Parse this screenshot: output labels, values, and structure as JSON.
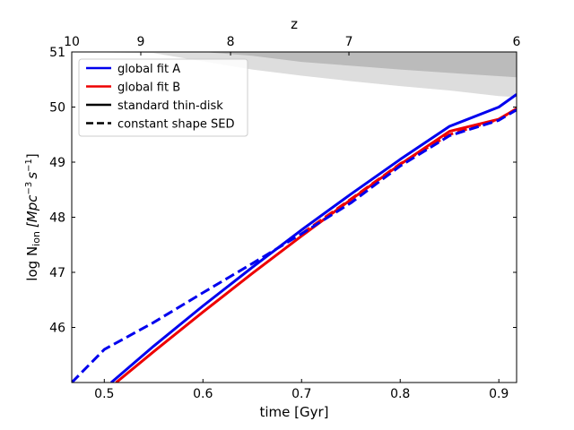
{
  "chart_data": {
    "type": "line",
    "xlabel": "time [Gyr]",
    "ylabel": "log Ṅ_ion [Mpc^-3 s^-1]",
    "ylabel_main": "log N",
    "ylabel_sub": "ion",
    "ylabel_units": "[Mpc",
    "ylabel_exp1": "−3",
    "ylabel_s": "s",
    "ylabel_exp2": "−1",
    "ylabel_close": "]",
    "top_axis_label": "z",
    "xlim": [
      0.467,
      0.918
    ],
    "ylim": [
      45,
      51
    ],
    "x_ticks": [
      0.5,
      0.6,
      0.7,
      0.8,
      0.9
    ],
    "x_tick_labels": [
      "0.5",
      "0.6",
      "0.7",
      "0.8",
      "0.9"
    ],
    "y_ticks": [
      46,
      47,
      48,
      49,
      50,
      51
    ],
    "y_tick_labels": [
      "46",
      "47",
      "48",
      "49",
      "50",
      "51"
    ],
    "top_ticks": [
      {
        "t": 0.467,
        "label": "10"
      },
      {
        "t": 0.537,
        "label": "9"
      },
      {
        "t": 0.628,
        "label": "8"
      },
      {
        "t": 0.748,
        "label": "7"
      },
      {
        "t": 0.918,
        "label": "6"
      }
    ],
    "series": [
      {
        "name": "global fit A, standard thin-disk",
        "color": "#0000ee",
        "dash": false,
        "x": [
          0.507,
          0.55,
          0.6,
          0.65,
          0.7,
          0.75,
          0.8,
          0.85,
          0.9,
          0.918
        ],
        "y": [
          45.0,
          45.66,
          46.39,
          47.09,
          47.77,
          48.42,
          49.05,
          49.65,
          50.0,
          50.23
        ]
      },
      {
        "name": "global fit B, standard thin-disk",
        "color": "#ee0000",
        "dash": false,
        "x": [
          0.512,
          0.55,
          0.6,
          0.65,
          0.7,
          0.75,
          0.8,
          0.85,
          0.9,
          0.918
        ],
        "y": [
          45.0,
          45.56,
          46.28,
          46.98,
          47.66,
          48.32,
          48.96,
          49.56,
          49.78,
          49.97
        ]
      },
      {
        "name": "global fit B, constant shape SED",
        "color": "#ee0000",
        "dash": true,
        "x": [
          0.7,
          0.75,
          0.8,
          0.85,
          0.9,
          0.918
        ],
        "y": [
          47.7,
          48.33,
          48.97,
          49.5,
          49.78,
          49.97
        ]
      },
      {
        "name": "global fit A, constant shape SED",
        "color": "#0000ee",
        "dash": true,
        "x": [
          0.467,
          0.5,
          0.55,
          0.6,
          0.65,
          0.7,
          0.75,
          0.8,
          0.85,
          0.9,
          0.918
        ],
        "y": [
          45.0,
          45.6,
          46.09,
          46.63,
          47.16,
          47.7,
          48.26,
          48.93,
          49.48,
          49.76,
          49.95
        ]
      }
    ],
    "bands": [
      {
        "name": "light grey band",
        "color": "#dddddd",
        "x": [
          0.467,
          0.55,
          0.6,
          0.65,
          0.7,
          0.75,
          0.8,
          0.85,
          0.9,
          0.918
        ],
        "y": [
          51.0,
          50.98,
          50.83,
          50.68,
          50.57,
          50.47,
          50.38,
          50.3,
          50.2,
          50.18
        ]
      },
      {
        "name": "dark grey band",
        "color": "#bbbbbb",
        "x": [
          0.467,
          0.55,
          0.6,
          0.65,
          0.7,
          0.75,
          0.8,
          0.85,
          0.9,
          0.918
        ],
        "y": [
          51.0,
          51.0,
          51.0,
          50.93,
          50.82,
          50.75,
          50.68,
          50.62,
          50.56,
          50.54
        ]
      }
    ],
    "legend": {
      "placement": "top-left",
      "entries": [
        {
          "label": "global fit A",
          "color": "#0000ee",
          "dash": false
        },
        {
          "label": "global fit B",
          "color": "#ee0000",
          "dash": false
        },
        {
          "label": "standard thin-disk",
          "color": "#000000",
          "dash": false
        },
        {
          "label": "constant shape SED",
          "color": "#000000",
          "dash": true
        }
      ]
    }
  }
}
